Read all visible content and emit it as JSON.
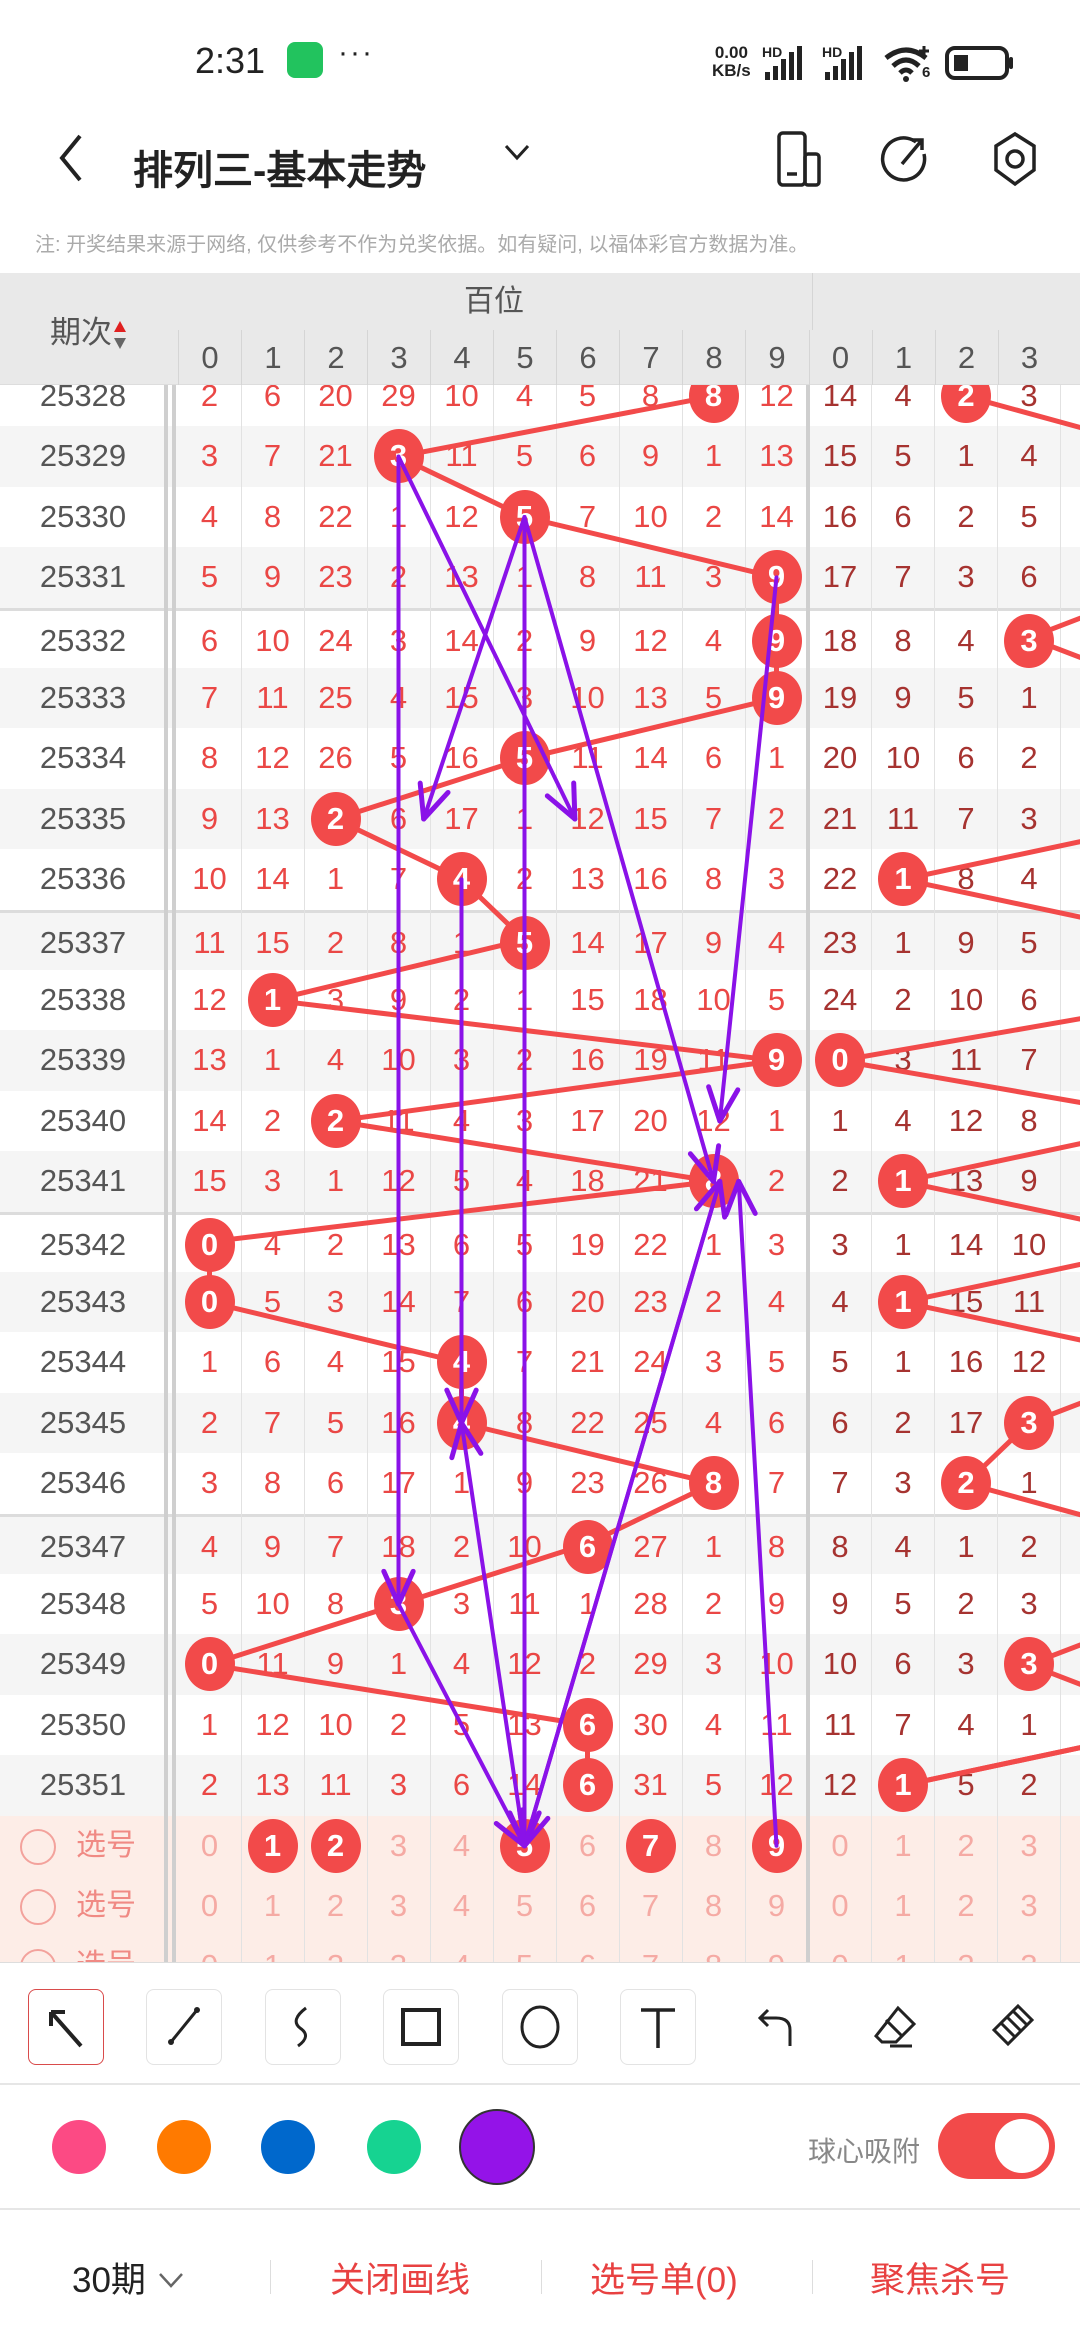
{
  "status": {
    "time": "2:31",
    "more": "···",
    "net_speed": "0.00",
    "net_unit": "KB/s",
    "hd1": "HD",
    "hd2": "HD",
    "wifi_sub": "6",
    "icons": [
      "wechat-icon",
      "signal-icon",
      "wifi-icon",
      "battery-icon"
    ]
  },
  "header": {
    "title": "排列三-基本走势",
    "icons": [
      "back-icon",
      "chevron-down-icon",
      "device-icon",
      "share-icon",
      "settings-icon"
    ]
  },
  "note": "注: 开奖结果来源于网络, 仅供参考不作为兑奖依据。如有疑问, 以福体彩官方数据为准。",
  "colors": {
    "ball": "#f24a4a",
    "hundreds_text": "#ea4745",
    "tens_text": "#a63330",
    "arrow": "#8a12e8"
  },
  "table": {
    "period_label": "期次",
    "groups": [
      {
        "label": "百位",
        "digits": [
          0,
          1,
          2,
          3,
          4,
          5,
          6,
          7,
          8,
          9
        ]
      },
      {
        "label": "",
        "digits": [
          0,
          1,
          2,
          3
        ]
      }
    ],
    "rows": [
      {
        "period": "25328",
        "hundreds": [
          2,
          6,
          20,
          29,
          10,
          4,
          5,
          8,
          8,
          12
        ],
        "hundreds_hit": 8,
        "tens": [
          14,
          4,
          2,
          3
        ],
        "tens_hit": 2
      },
      {
        "period": "25329",
        "hundreds": [
          3,
          7,
          21,
          3,
          11,
          5,
          6,
          9,
          1,
          13
        ],
        "hundreds_hit": 3,
        "tens": [
          15,
          5,
          1,
          4
        ],
        "tens_hit": null
      },
      {
        "period": "25330",
        "hundreds": [
          4,
          8,
          22,
          1,
          12,
          5,
          7,
          10,
          2,
          14
        ],
        "hundreds_hit": 5,
        "tens": [
          16,
          6,
          2,
          5
        ],
        "tens_hit": null
      },
      {
        "period": "25331",
        "hundreds": [
          5,
          9,
          23,
          2,
          13,
          1,
          8,
          11,
          3,
          9
        ],
        "hundreds_hit": 9,
        "tens": [
          17,
          7,
          3,
          6
        ],
        "tens_hit": null
      },
      {
        "period": "25332",
        "hundreds": [
          6,
          10,
          24,
          3,
          14,
          2,
          9,
          12,
          4,
          9
        ],
        "hundreds_hit": 9,
        "tens": [
          18,
          8,
          4,
          3
        ],
        "tens_hit": 3
      },
      {
        "period": "25333",
        "hundreds": [
          7,
          11,
          25,
          4,
          15,
          3,
          10,
          13,
          5,
          9
        ],
        "hundreds_hit": 9,
        "tens": [
          19,
          9,
          5,
          1
        ],
        "tens_hit": null
      },
      {
        "period": "25334",
        "hundreds": [
          8,
          12,
          26,
          5,
          16,
          5,
          11,
          14,
          6,
          1
        ],
        "hundreds_hit": 5,
        "tens": [
          20,
          10,
          6,
          2
        ],
        "tens_hit": null
      },
      {
        "period": "25335",
        "hundreds": [
          9,
          13,
          2,
          6,
          17,
          1,
          12,
          15,
          7,
          2
        ],
        "hundreds_hit": 2,
        "tens": [
          21,
          11,
          7,
          3
        ],
        "tens_hit": null
      },
      {
        "period": "25336",
        "hundreds": [
          10,
          14,
          1,
          7,
          4,
          2,
          13,
          16,
          8,
          3
        ],
        "hundreds_hit": 4,
        "tens": [
          22,
          1,
          8,
          4
        ],
        "tens_hit": 1
      },
      {
        "period": "25337",
        "hundreds": [
          11,
          15,
          2,
          8,
          1,
          5,
          14,
          17,
          9,
          4
        ],
        "hundreds_hit": 5,
        "tens": [
          23,
          1,
          9,
          5
        ],
        "tens_hit": null
      },
      {
        "period": "25338",
        "hundreds": [
          12,
          1,
          3,
          9,
          2,
          1,
          15,
          18,
          10,
          5
        ],
        "hundreds_hit": 1,
        "tens": [
          24,
          2,
          10,
          6
        ],
        "tens_hit": null
      },
      {
        "period": "25339",
        "hundreds": [
          13,
          1,
          4,
          10,
          3,
          2,
          16,
          19,
          11,
          9
        ],
        "hundreds_hit": 9,
        "tens": [
          0,
          3,
          11,
          7
        ],
        "tens_hit": 0
      },
      {
        "period": "25340",
        "hundreds": [
          14,
          2,
          2,
          11,
          4,
          3,
          17,
          20,
          12,
          1
        ],
        "hundreds_hit": 2,
        "tens": [
          1,
          4,
          12,
          8
        ],
        "tens_hit": null
      },
      {
        "period": "25341",
        "hundreds": [
          15,
          3,
          1,
          12,
          5,
          4,
          18,
          21,
          8,
          2
        ],
        "hundreds_hit": 8,
        "tens": [
          2,
          1,
          13,
          9
        ],
        "tens_hit": 1
      },
      {
        "period": "25342",
        "hundreds": [
          0,
          4,
          2,
          13,
          6,
          5,
          19,
          22,
          1,
          3
        ],
        "hundreds_hit": 0,
        "tens": [
          3,
          1,
          14,
          10
        ],
        "tens_hit": null
      },
      {
        "period": "25343",
        "hundreds": [
          0,
          5,
          3,
          14,
          7,
          6,
          20,
          23,
          2,
          4
        ],
        "hundreds_hit": 0,
        "tens": [
          4,
          1,
          15,
          11
        ],
        "tens_hit": 1
      },
      {
        "period": "25344",
        "hundreds": [
          1,
          6,
          4,
          15,
          4,
          7,
          21,
          24,
          3,
          5
        ],
        "hundreds_hit": 4,
        "tens": [
          5,
          1,
          16,
          12
        ],
        "tens_hit": null
      },
      {
        "period": "25345",
        "hundreds": [
          2,
          7,
          5,
          16,
          4,
          8,
          22,
          25,
          4,
          6
        ],
        "hundreds_hit": 4,
        "tens": [
          6,
          2,
          17,
          3
        ],
        "tens_hit": 3
      },
      {
        "period": "25346",
        "hundreds": [
          3,
          8,
          6,
          17,
          1,
          9,
          23,
          26,
          8,
          7
        ],
        "hundreds_hit": 8,
        "tens": [
          7,
          3,
          2,
          1
        ],
        "tens_hit": 2
      },
      {
        "period": "25347",
        "hundreds": [
          4,
          9,
          7,
          18,
          2,
          10,
          6,
          27,
          1,
          8
        ],
        "hundreds_hit": 6,
        "tens": [
          8,
          4,
          1,
          2
        ],
        "tens_hit": null
      },
      {
        "period": "25348",
        "hundreds": [
          5,
          10,
          8,
          3,
          3,
          11,
          1,
          28,
          2,
          9
        ],
        "hundreds_hit": 3,
        "tens": [
          9,
          5,
          2,
          3
        ],
        "tens_hit": null
      },
      {
        "period": "25349",
        "hundreds": [
          0,
          11,
          9,
          1,
          4,
          12,
          2,
          29,
          3,
          10
        ],
        "hundreds_hit": 0,
        "tens": [
          10,
          6,
          3,
          3
        ],
        "tens_hit": 3
      },
      {
        "period": "25350",
        "hundreds": [
          1,
          12,
          10,
          2,
          5,
          13,
          6,
          30,
          4,
          11
        ],
        "hundreds_hit": 6,
        "tens": [
          11,
          7,
          4,
          1
        ],
        "tens_hit": null
      },
      {
        "period": "25351",
        "hundreds": [
          2,
          13,
          11,
          3,
          6,
          14,
          6,
          31,
          5,
          12
        ],
        "hundreds_hit": 6,
        "tens": [
          12,
          1,
          5,
          2
        ],
        "tens_hit": 1
      }
    ],
    "selection_rows": [
      {
        "label": "选号",
        "selected_hundreds": [
          1,
          2,
          5,
          7,
          9
        ]
      },
      {
        "label": "选号",
        "selected_hundreds": []
      },
      {
        "label": "选号",
        "selected_hundreds": []
      }
    ]
  },
  "drawing": {
    "color": "#8a12e8",
    "arrows": [
      {
        "from": [
          "25329",
          3
        ],
        "to": [
          "25348",
          3
        ]
      },
      {
        "from": [
          "25329",
          3
        ],
        "to": [
          "25335",
          5.8
        ]
      },
      {
        "from": [
          "25330",
          5
        ],
        "to": [
          "25335",
          3.4
        ]
      },
      {
        "from": [
          "25330",
          5
        ],
        "to": [
          "select",
          5
        ]
      },
      {
        "from": [
          "25330",
          5
        ],
        "to": [
          "25341",
          8
        ]
      },
      {
        "from": [
          "25331",
          9
        ],
        "to": [
          "25340",
          8.1
        ]
      },
      {
        "from": [
          "25336",
          4
        ],
        "to": [
          "25345",
          4
        ]
      },
      {
        "from": [
          "select",
          5
        ],
        "to": [
          "25345",
          4
        ]
      },
      {
        "from": [
          "25348",
          3
        ],
        "to": [
          "select",
          5
        ]
      },
      {
        "from": [
          "select",
          5
        ],
        "to": [
          "25341",
          8.1
        ]
      },
      {
        "from": [
          "25341",
          8.1
        ],
        "to": [
          "select",
          5
        ]
      },
      {
        "from": [
          "select",
          9
        ],
        "to": [
          "25341",
          8.4
        ]
      }
    ]
  },
  "toolbar": {
    "tools": [
      {
        "name": "select-arrow",
        "active": true
      },
      {
        "name": "line"
      },
      {
        "name": "curve"
      },
      {
        "name": "rectangle"
      },
      {
        "name": "circle"
      },
      {
        "name": "text"
      },
      {
        "name": "undo"
      },
      {
        "name": "eraser"
      },
      {
        "name": "clear-brush"
      }
    ],
    "palette": [
      "#fc4a84",
      "#ff7a00",
      "#0068cc",
      "#16d391",
      "#9413e8"
    ],
    "active_color": "#9413e8",
    "snap_label": "球心吸附",
    "snap_on": true
  },
  "bottom": {
    "period_select": "30期",
    "close_draw": "关闭画线",
    "pick_list": "选号单(0)",
    "focus_kill": "聚焦杀号"
  }
}
